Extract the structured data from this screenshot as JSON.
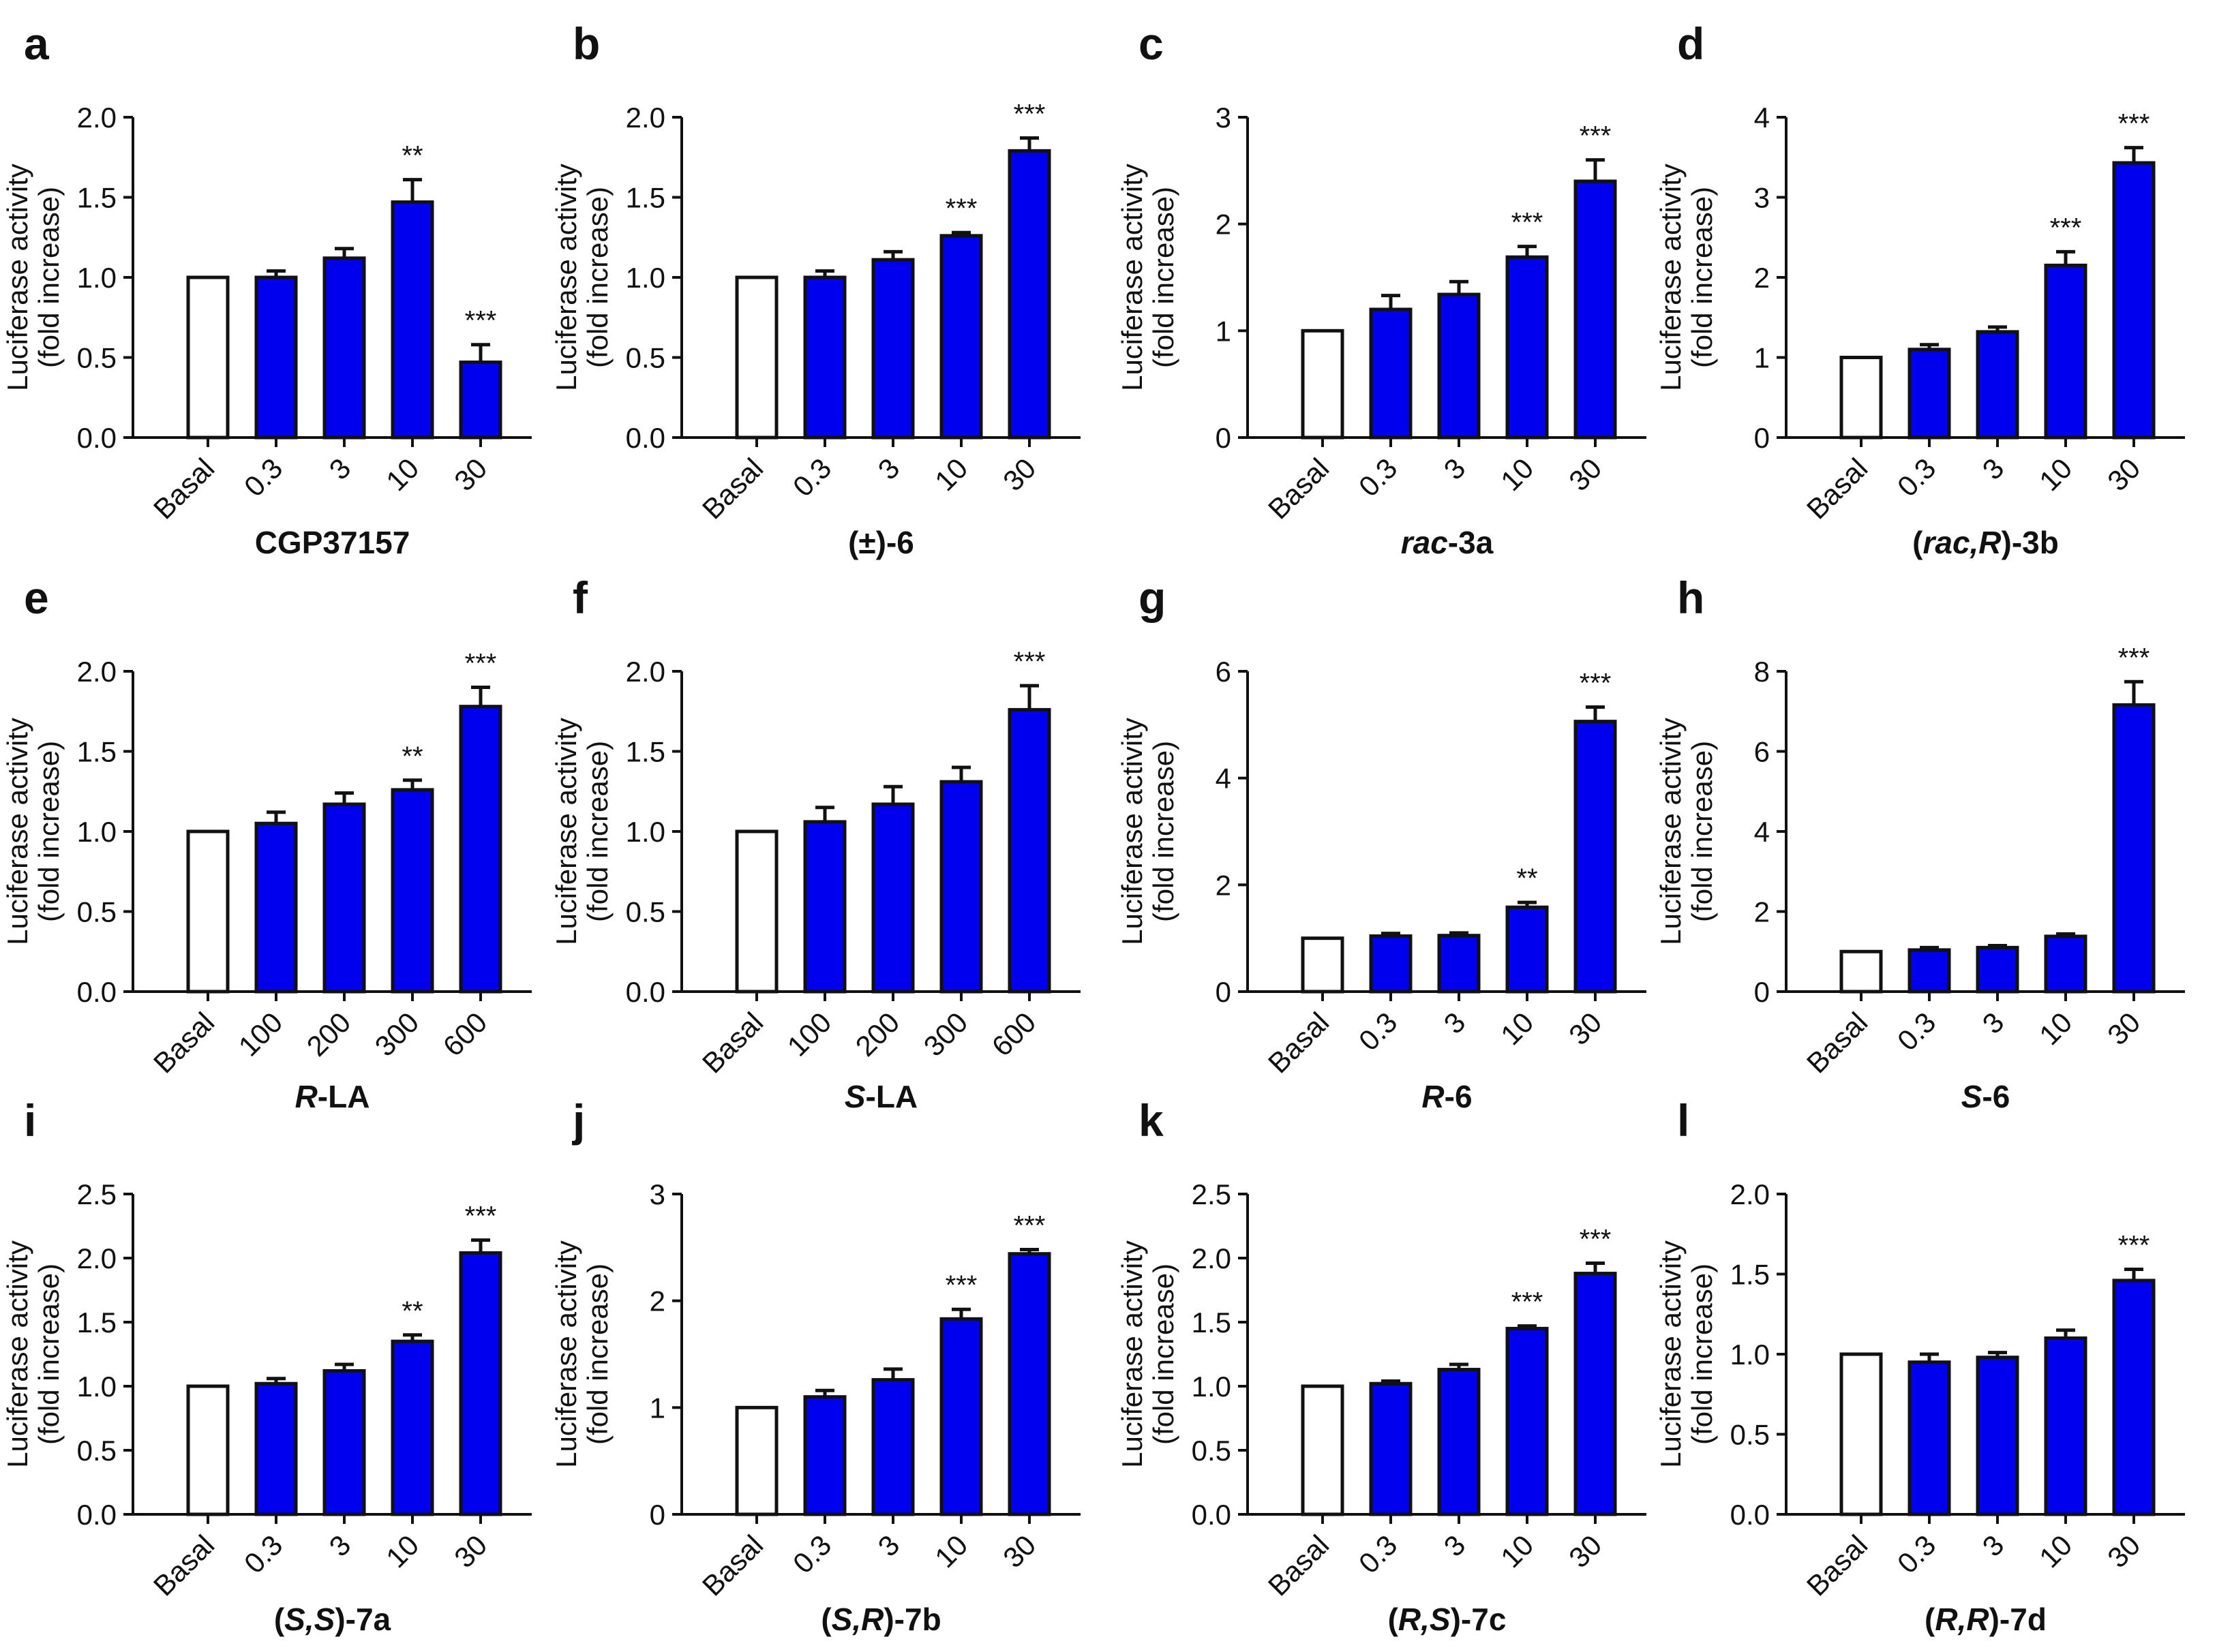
{
  "colors": {
    "treated": "#0000ee",
    "basal": "#ffffff",
    "stroke": "#111111"
  },
  "ylabel_line1": "Luciferase activity",
  "ylabel_line2": "(fold increase)",
  "chart_data": [
    {
      "panel": "a",
      "type": "bar",
      "title_parts": [
        {
          "t": "CGP37157",
          "i": false
        }
      ],
      "categories": [
        "Basal",
        "0.3",
        "3",
        "10",
        "30"
      ],
      "values": [
        1.0,
        1.0,
        1.12,
        1.47,
        0.47
      ],
      "errors": [
        0,
        0.04,
        0.06,
        0.14,
        0.11
      ],
      "significance": [
        "",
        "",
        "",
        "**",
        "***"
      ],
      "ylim": [
        0,
        2.0
      ],
      "yticks": [
        0.0,
        0.5,
        1.0,
        1.5,
        2.0
      ],
      "ytick_labels": [
        "0.0",
        "0.5",
        "1.0",
        "1.5",
        "2.0"
      ]
    },
    {
      "panel": "b",
      "type": "bar",
      "title_parts": [
        {
          "t": "(±)-6",
          "i": false
        }
      ],
      "categories": [
        "Basal",
        "0.3",
        "3",
        "10",
        "30"
      ],
      "values": [
        1.0,
        1.0,
        1.11,
        1.26,
        1.79
      ],
      "errors": [
        0,
        0.04,
        0.05,
        0.02,
        0.08
      ],
      "significance": [
        "",
        "",
        "",
        "***",
        "***"
      ],
      "ylim": [
        0,
        2.0
      ],
      "yticks": [
        0.0,
        0.5,
        1.0,
        1.5,
        2.0
      ],
      "ytick_labels": [
        "0.0",
        "0.5",
        "1.0",
        "1.5",
        "2.0"
      ]
    },
    {
      "panel": "c",
      "type": "bar",
      "title_parts": [
        {
          "t": "rac",
          "i": true
        },
        {
          "t": "-3a",
          "i": false
        }
      ],
      "categories": [
        "Basal",
        "0.3",
        "3",
        "10",
        "30"
      ],
      "values": [
        1.0,
        1.2,
        1.34,
        1.69,
        2.4
      ],
      "errors": [
        0,
        0.13,
        0.12,
        0.1,
        0.2
      ],
      "significance": [
        "",
        "",
        "",
        "***",
        "***"
      ],
      "ylim": [
        0,
        3
      ],
      "yticks": [
        0,
        1,
        2,
        3
      ],
      "ytick_labels": [
        "0",
        "1",
        "2",
        "3"
      ]
    },
    {
      "panel": "d",
      "type": "bar",
      "title_parts": [
        {
          "t": "(",
          "i": false
        },
        {
          "t": "rac,R",
          "i": true
        },
        {
          "t": ")-3b",
          "i": false
        }
      ],
      "categories": [
        "Basal",
        "0.3",
        "3",
        "10",
        "30"
      ],
      "values": [
        1.0,
        1.1,
        1.32,
        2.15,
        3.43
      ],
      "errors": [
        0,
        0.06,
        0.06,
        0.17,
        0.19
      ],
      "significance": [
        "",
        "",
        "",
        "***",
        "***"
      ],
      "ylim": [
        0,
        4
      ],
      "yticks": [
        0,
        1,
        2,
        3,
        4
      ],
      "ytick_labels": [
        "0",
        "1",
        "2",
        "3",
        "4"
      ]
    },
    {
      "panel": "e",
      "type": "bar",
      "title_parts": [
        {
          "t": "R",
          "i": true
        },
        {
          "t": "-LA",
          "i": false
        }
      ],
      "categories": [
        "Basal",
        "100",
        "200",
        "300",
        "600"
      ],
      "values": [
        1.0,
        1.05,
        1.17,
        1.26,
        1.78
      ],
      "errors": [
        0,
        0.07,
        0.07,
        0.06,
        0.12
      ],
      "significance": [
        "",
        "",
        "",
        "**",
        "***"
      ],
      "ylim": [
        0,
        2.0
      ],
      "yticks": [
        0.0,
        0.5,
        1.0,
        1.5,
        2.0
      ],
      "ytick_labels": [
        "0.0",
        "0.5",
        "1.0",
        "1.5",
        "2.0"
      ]
    },
    {
      "panel": "f",
      "type": "bar",
      "title_parts": [
        {
          "t": "S",
          "i": true
        },
        {
          "t": "-LA",
          "i": false
        }
      ],
      "categories": [
        "Basal",
        "100",
        "200",
        "300",
        "600"
      ],
      "values": [
        1.0,
        1.06,
        1.17,
        1.31,
        1.76
      ],
      "errors": [
        0,
        0.09,
        0.11,
        0.09,
        0.15
      ],
      "significance": [
        "",
        "",
        "",
        "",
        "***"
      ],
      "ylim": [
        0,
        2.0
      ],
      "yticks": [
        0.0,
        0.5,
        1.0,
        1.5,
        2.0
      ],
      "ytick_labels": [
        "0.0",
        "0.5",
        "1.0",
        "1.5",
        "2.0"
      ]
    },
    {
      "panel": "g",
      "type": "bar",
      "title_parts": [
        {
          "t": "R",
          "i": true
        },
        {
          "t": "-6",
          "i": false
        }
      ],
      "categories": [
        "Basal",
        "0.3",
        "3",
        "10",
        "30"
      ],
      "values": [
        1.0,
        1.04,
        1.05,
        1.58,
        5.06
      ],
      "errors": [
        0,
        0.05,
        0.05,
        0.09,
        0.27
      ],
      "significance": [
        "",
        "",
        "",
        "**",
        "***"
      ],
      "ylim": [
        0,
        6
      ],
      "yticks": [
        0,
        2,
        4,
        6
      ],
      "ytick_labels": [
        "0",
        "2",
        "4",
        "6"
      ]
    },
    {
      "panel": "h",
      "type": "bar",
      "title_parts": [
        {
          "t": "S",
          "i": true
        },
        {
          "t": "-6",
          "i": false
        }
      ],
      "categories": [
        "Basal",
        "0.3",
        "3",
        "10",
        "30"
      ],
      "values": [
        1.0,
        1.04,
        1.1,
        1.38,
        7.16
      ],
      "errors": [
        0,
        0.06,
        0.05,
        0.06,
        0.58
      ],
      "significance": [
        "",
        "",
        "",
        "",
        "***"
      ],
      "ylim": [
        0,
        8
      ],
      "yticks": [
        0,
        2,
        4,
        6,
        8
      ],
      "ytick_labels": [
        "0",
        "2",
        "4",
        "6",
        "8"
      ]
    },
    {
      "panel": "i",
      "type": "bar",
      "title_parts": [
        {
          "t": "(",
          "i": false
        },
        {
          "t": "S,S",
          "i": true
        },
        {
          "t": ")-7a",
          "i": false
        }
      ],
      "categories": [
        "Basal",
        "0.3",
        "3",
        "10",
        "30"
      ],
      "values": [
        1.0,
        1.02,
        1.12,
        1.35,
        2.04
      ],
      "errors": [
        0,
        0.04,
        0.05,
        0.05,
        0.1
      ],
      "significance": [
        "",
        "",
        "",
        "**",
        "***"
      ],
      "ylim": [
        0,
        2.5
      ],
      "yticks": [
        0.0,
        0.5,
        1.0,
        1.5,
        2.0,
        2.5
      ],
      "ytick_labels": [
        "0.0",
        "0.5",
        "1.0",
        "1.5",
        "2.0",
        "2.5"
      ]
    },
    {
      "panel": "j",
      "type": "bar",
      "title_parts": [
        {
          "t": "(",
          "i": false
        },
        {
          "t": "S,R",
          "i": true
        },
        {
          "t": ")-7b",
          "i": false
        }
      ],
      "categories": [
        "Basal",
        "0.3",
        "3",
        "10",
        "30"
      ],
      "values": [
        1.0,
        1.1,
        1.26,
        1.83,
        2.44
      ],
      "errors": [
        0,
        0.06,
        0.1,
        0.09,
        0.04
      ],
      "significance": [
        "",
        "",
        "",
        "***",
        "***"
      ],
      "ylim": [
        0,
        3
      ],
      "yticks": [
        0,
        1,
        2,
        3
      ],
      "ytick_labels": [
        "0",
        "1",
        "2",
        "3"
      ]
    },
    {
      "panel": "k",
      "type": "bar",
      "title_parts": [
        {
          "t": "(",
          "i": false
        },
        {
          "t": "R,S",
          "i": true
        },
        {
          "t": ")-7c",
          "i": false
        }
      ],
      "categories": [
        "Basal",
        "0.3",
        "3",
        "10",
        "30"
      ],
      "values": [
        1.0,
        1.02,
        1.13,
        1.45,
        1.88
      ],
      "errors": [
        0,
        0.02,
        0.04,
        0.02,
        0.08
      ],
      "significance": [
        "",
        "",
        "",
        "***",
        "***"
      ],
      "ylim": [
        0,
        2.5
      ],
      "yticks": [
        0.0,
        0.5,
        1.0,
        1.5,
        2.0,
        2.5
      ],
      "ytick_labels": [
        "0.0",
        "0.5",
        "1.0",
        "1.5",
        "2.0",
        "2.5"
      ]
    },
    {
      "panel": "l",
      "type": "bar",
      "title_parts": [
        {
          "t": "(",
          "i": false
        },
        {
          "t": "R,R",
          "i": true
        },
        {
          "t": ")-7d",
          "i": false
        }
      ],
      "categories": [
        "Basal",
        "0.3",
        "3",
        "10",
        "30"
      ],
      "values": [
        1.0,
        0.95,
        0.98,
        1.1,
        1.46
      ],
      "errors": [
        0,
        0.05,
        0.03,
        0.05,
        0.07
      ],
      "significance": [
        "",
        "",
        "",
        "",
        "***"
      ],
      "ylim": [
        0,
        2.0
      ],
      "yticks": [
        0.0,
        0.5,
        1.0,
        1.5,
        2.0
      ],
      "ytick_labels": [
        "0.0",
        "0.5",
        "1.0",
        "1.5",
        "2.0"
      ]
    }
  ]
}
